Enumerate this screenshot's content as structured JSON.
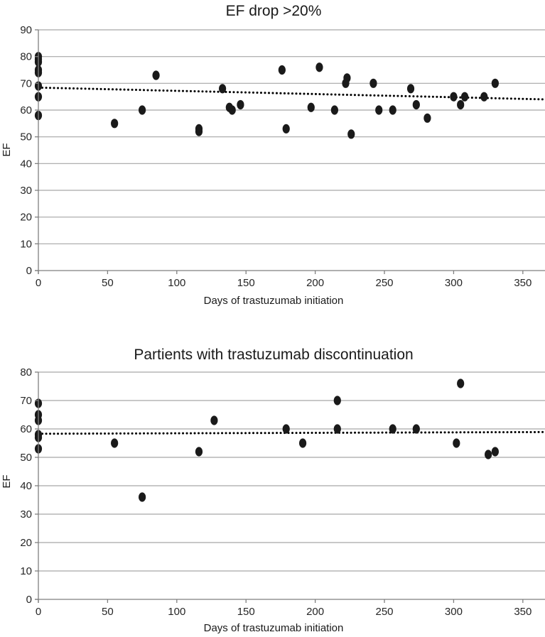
{
  "figure": {
    "background": "#ffffff"
  },
  "colors": {
    "marker": "#1a1a1a",
    "gridline": "#a6a6a6",
    "axis": "#7f7f7f",
    "tick_text": "#262626",
    "title_text": "#1a1a1a",
    "trendline": "#000000"
  },
  "chart_data": [
    {
      "type": "scatter",
      "title": "EF drop >20%",
      "xlabel": "Days of trastuzumab initiation",
      "ylabel": "EF",
      "xlim": [
        0,
        366
      ],
      "ylim": [
        0,
        90
      ],
      "xticks": [
        0,
        50,
        100,
        150,
        200,
        250,
        300,
        350
      ],
      "yticks": [
        0,
        10,
        20,
        30,
        40,
        50,
        60,
        70,
        80,
        90
      ],
      "grid": "horizontal",
      "legend": "none",
      "marker": "filled-ellipse",
      "trendline": {
        "style": "dotted",
        "x": [
          0,
          366
        ],
        "y": [
          68.4,
          64.0
        ]
      },
      "points": [
        [
          0,
          80
        ],
        [
          0,
          79
        ],
        [
          0,
          78
        ],
        [
          0,
          75
        ],
        [
          0,
          74
        ],
        [
          0,
          69
        ],
        [
          0,
          65
        ],
        [
          0,
          58
        ],
        [
          55,
          55
        ],
        [
          75,
          60
        ],
        [
          85,
          73
        ],
        [
          116,
          53
        ],
        [
          116,
          52
        ],
        [
          133,
          68
        ],
        [
          138,
          61
        ],
        [
          140,
          60
        ],
        [
          146,
          62
        ],
        [
          176,
          75
        ],
        [
          179,
          53
        ],
        [
          197,
          61
        ],
        [
          203,
          76
        ],
        [
          214,
          60
        ],
        [
          222,
          70
        ],
        [
          223,
          72
        ],
        [
          226,
          51
        ],
        [
          242,
          70
        ],
        [
          246,
          60
        ],
        [
          256,
          60
        ],
        [
          269,
          68
        ],
        [
          273,
          62
        ],
        [
          281,
          57
        ],
        [
          300,
          65
        ],
        [
          305,
          62
        ],
        [
          308,
          65
        ],
        [
          322,
          65
        ],
        [
          330,
          70
        ]
      ]
    },
    {
      "type": "scatter",
      "title": "Partients with trastuzumab discontinuation",
      "xlabel": "Days of trastuzumab initiation",
      "ylabel": "EF",
      "xlim": [
        0,
        366
      ],
      "ylim": [
        0,
        80
      ],
      "xticks": [
        0,
        50,
        100,
        150,
        200,
        250,
        300,
        350
      ],
      "yticks": [
        0,
        10,
        20,
        30,
        40,
        50,
        60,
        70,
        80
      ],
      "grid": "horizontal",
      "legend": "none",
      "marker": "filled-ellipse",
      "trendline": {
        "style": "dotted",
        "x": [
          0,
          366
        ],
        "y": [
          58.3,
          58.9
        ]
      },
      "points": [
        [
          0,
          69
        ],
        [
          0,
          65
        ],
        [
          0,
          63
        ],
        [
          0,
          58
        ],
        [
          0,
          57
        ],
        [
          0,
          53
        ],
        [
          55,
          55
        ],
        [
          75,
          36
        ],
        [
          116,
          52
        ],
        [
          127,
          63
        ],
        [
          179,
          60
        ],
        [
          191,
          55
        ],
        [
          216,
          70
        ],
        [
          216,
          60
        ],
        [
          256,
          60
        ],
        [
          273,
          60
        ],
        [
          302,
          55
        ],
        [
          305,
          76
        ],
        [
          325,
          51
        ],
        [
          330,
          52
        ]
      ]
    }
  ]
}
